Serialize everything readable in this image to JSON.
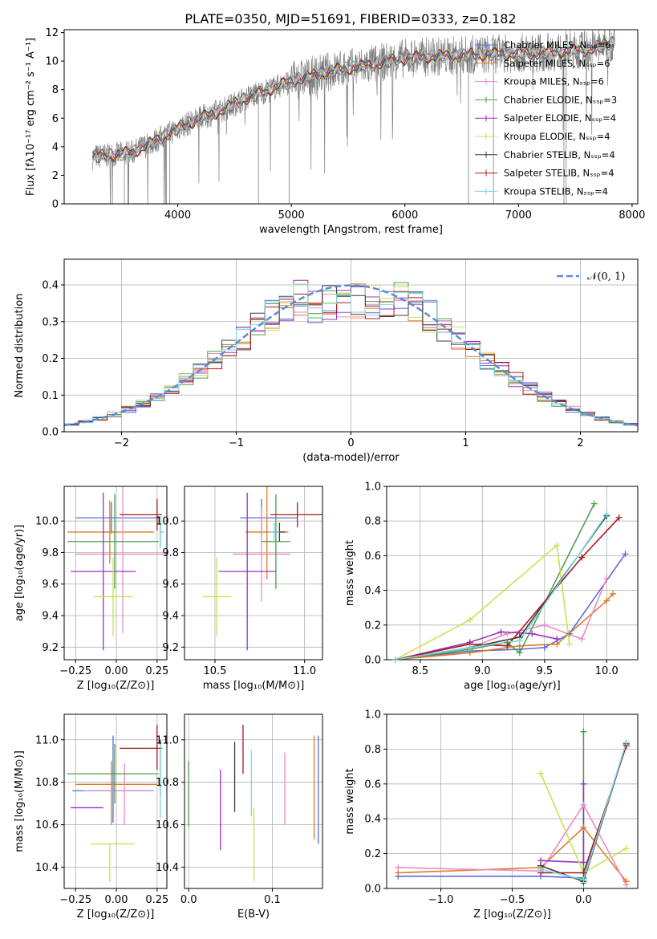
{
  "figure": {
    "title": "PLATE=0350, MJD=51691, FIBERID=0333, z=0.182"
  },
  "colors": {
    "series": [
      "#5a6cd8",
      "#e07b26",
      "#e88bc4",
      "#4c9f4c",
      "#9b30c4",
      "#c9e352",
      "#3c3c3c",
      "#a8191c",
      "#7ad8df"
    ],
    "data": "#808080",
    "gaussian": "#5b8bd8"
  },
  "chart_data": [
    {
      "id": "spectrum",
      "type": "line",
      "xlabel": "wavelength [Angstrom, rest frame]",
      "ylabel": "Flux [fλ10⁻¹⁷ erg cm⁻² s⁻¹ A⁻¹]",
      "xlim": [
        3000,
        8050
      ],
      "ylim": [
        0,
        12.2
      ],
      "xticks": [
        "4000",
        "5000",
        "6000",
        "7000",
        "8000"
      ],
      "yticks": [
        "0",
        "2",
        "4",
        "6",
        "8",
        "10",
        "12"
      ],
      "legend_position": "top-right",
      "series": [
        {
          "name": "Chabrier MILES, Nₛₛₚ=6"
        },
        {
          "name": "Salpeter MILES, Nₛₛₚ=6"
        },
        {
          "name": "Kroupa MILES, Nₛₛₚ=6"
        },
        {
          "name": "Chabrier ELODIE, Nₛₛₚ=3"
        },
        {
          "name": "Salpeter ELODIE, Nₛₛₚ=4"
        },
        {
          "name": "Kroupa ELODIE, Nₛₛₚ=4"
        },
        {
          "name": "Chabrier STELIB, Nₛₛₚ=4"
        },
        {
          "name": "Salpeter STELIB, Nₛₛₚ=4"
        },
        {
          "name": "Kroupa STELIB, Nₛₛₚ=4"
        }
      ],
      "continuum": {
        "x": [
          3250,
          3400,
          3600,
          3800,
          4000,
          4200,
          4400,
          4600,
          4800,
          5000,
          5200,
          5400,
          5600,
          5800,
          6000,
          6200,
          6500,
          6800,
          7200,
          7600,
          7850
        ],
        "y": [
          3.3,
          3.4,
          3.6,
          4.4,
          5.3,
          6.0,
          6.6,
          7.4,
          8.0,
          8.6,
          9.0,
          9.4,
          9.6,
          9.9,
          10.2,
          10.3,
          10.4,
          10.5,
          10.6,
          10.8,
          11.3
        ]
      }
    },
    {
      "id": "residuals",
      "type": "line",
      "xlabel": "(data-model)/error",
      "ylabel": "Normed distribution",
      "xlim": [
        -2.5,
        2.5
      ],
      "ylim": [
        0,
        0.47
      ],
      "xticks": [
        "−2",
        "−1",
        "0",
        "1",
        "2"
      ],
      "yticks": [
        "0.0",
        "0.1",
        "0.2",
        "0.3",
        "0.4"
      ],
      "legend": "𝒩(0, 1)",
      "legend_position": "top-right",
      "gaussian": {
        "mean": 0,
        "sigma": 1
      }
    },
    {
      "id": "age-vs-Z",
      "type": "scatter",
      "xlabel": "Z [log₁₀(Z/Z⊙)]",
      "ylabel": "age  [log₁₀(age/yr)]",
      "xlim": [
        -0.32,
        0.31
      ],
      "ylim": [
        9.12,
        10.22
      ],
      "xticks": [
        "−0.25",
        "0.00",
        "0.25"
      ],
      "yticks": [
        "9.2",
        "9.4",
        "9.6",
        "9.8",
        "10.0"
      ],
      "points": [
        {
          "x": -0.03,
          "xerr": [
            0.22,
            0.3
          ],
          "y": 10.02,
          "yerr": [
            0.1,
            0.1
          ]
        },
        {
          "x": -0.04,
          "xerr": [
            0.26,
            0.27
          ],
          "y": 9.93,
          "yerr": [
            0.2,
            0.2
          ]
        },
        {
          "x": 0.04,
          "xerr": [
            0.29,
            0.27
          ],
          "y": 9.79,
          "yerr": [
            0.5,
            0.5
          ]
        },
        {
          "x": -0.01,
          "xerr": [
            0.29,
            0.27
          ],
          "y": 9.87,
          "yerr": [
            0.3,
            0.3
          ]
        },
        {
          "x": -0.08,
          "xerr": [
            0.2,
            0.2
          ],
          "y": 9.68,
          "yerr": [
            0.5,
            0.5
          ]
        },
        {
          "x": -0.02,
          "xerr": [
            0.12,
            0.12
          ],
          "y": 9.52,
          "yerr": [
            0.25,
            0.25
          ]
        },
        {
          "x": 0.27,
          "xerr": [
            0.0,
            0.02
          ],
          "y": 9.93,
          "yerr": [
            0.1,
            0.1
          ]
        },
        {
          "x": 0.25,
          "xerr": [
            0.23,
            0.03
          ],
          "y": 10.04,
          "yerr": [
            0.1,
            0.1
          ]
        },
        {
          "x": 0.27,
          "xerr": [
            0.0,
            0.02
          ],
          "y": 9.93,
          "yerr": [
            0.1,
            0.1
          ]
        }
      ]
    },
    {
      "id": "age-vs-mass",
      "type": "scatter",
      "xlabel": "mass [log₁₀(M/M⊙)]",
      "ylabel": "",
      "xlim": [
        10.33,
        11.1
      ],
      "ylim": [
        9.12,
        10.22
      ],
      "xticks": [
        "10.5",
        "11.0"
      ],
      "yticks": [
        "9.2",
        "9.4",
        "9.6",
        "9.8",
        "10.0"
      ],
      "points": [
        {
          "x": 10.76,
          "xerr": [
            0.12,
            0.2
          ],
          "y": 10.02,
          "yerr": [
            0.12,
            0.12
          ]
        },
        {
          "x": 10.79,
          "xerr": [
            0.12,
            0.12
          ],
          "y": 9.93,
          "yerr": [
            0.3,
            0.3
          ]
        },
        {
          "x": 10.76,
          "xerr": [
            0.16,
            0.16
          ],
          "y": 9.79,
          "yerr": [
            0.3,
            0.3
          ]
        },
        {
          "x": 10.84,
          "xerr": [
            0.08,
            0.08
          ],
          "y": 9.87,
          "yerr": [
            0.3,
            0.3
          ]
        },
        {
          "x": 10.68,
          "xerr": [
            0.16,
            0.16
          ],
          "y": 9.68,
          "yerr": [
            0.5,
            0.5
          ]
        },
        {
          "x": 10.51,
          "xerr": [
            0.08,
            0.08
          ],
          "y": 9.52,
          "yerr": [
            0.25,
            0.25
          ]
        },
        {
          "x": 10.86,
          "xerr": [
            0.03,
            0.03
          ],
          "y": 9.93,
          "yerr": [
            0.06,
            0.06
          ]
        },
        {
          "x": 10.96,
          "xerr": [
            0.15,
            0.15
          ],
          "y": 10.04,
          "yerr": [
            0.08,
            0.08
          ]
        },
        {
          "x": 10.83,
          "xerr": [
            0.03,
            0.03
          ],
          "y": 9.93,
          "yerr": [
            0.06,
            0.06
          ]
        }
      ]
    },
    {
      "id": "weight-vs-age",
      "type": "line",
      "xlabel": "age  [log₁₀(age/yr)]",
      "ylabel": "mass weight",
      "xlim": [
        8.23,
        10.25
      ],
      "ylim": [
        0,
        1.0
      ],
      "xticks": [
        "8.5",
        "9.0",
        "9.5",
        "10.0"
      ],
      "yticks": [
        "0.0",
        "0.2",
        "0.4",
        "0.6",
        "0.8",
        "1.0"
      ],
      "series": [
        {
          "x": [
            8.3,
            8.9,
            9.3,
            9.5,
            9.7,
            10.15
          ],
          "y": [
            0.0,
            0.05,
            0.06,
            0.07,
            0.15,
            0.61
          ]
        },
        {
          "x": [
            8.3,
            8.9,
            9.3,
            9.6,
            10.0,
            10.05
          ],
          "y": [
            0.0,
            0.04,
            0.08,
            0.09,
            0.34,
            0.38
          ]
        },
        {
          "x": [
            8.3,
            8.9,
            9.2,
            9.5,
            9.8,
            10.0
          ],
          "y": [
            0.0,
            0.07,
            0.15,
            0.2,
            0.12,
            0.47
          ]
        },
        {
          "x": [
            8.3,
            8.9,
            9.2,
            9.3,
            9.9
          ],
          "y": [
            0.0,
            0.06,
            0.1,
            0.04,
            0.9
          ]
        },
        {
          "x": [
            8.3,
            8.9,
            9.15,
            9.4,
            9.6
          ],
          "y": [
            0.0,
            0.1,
            0.16,
            0.15,
            0.12
          ]
        },
        {
          "x": [
            8.3,
            8.9,
            9.6,
            9.7
          ],
          "y": [
            0.0,
            0.23,
            0.66,
            0.09
          ]
        },
        {
          "x": [
            8.3,
            8.9,
            9.3,
            10.0
          ],
          "y": [
            0.0,
            0.07,
            0.13,
            0.83
          ]
        },
        {
          "x": [
            8.3,
            8.9,
            9.2,
            9.8,
            10.1
          ],
          "y": [
            0.0,
            0.09,
            0.08,
            0.59,
            0.82
          ]
        },
        {
          "x": [
            8.3,
            8.9,
            9.3,
            10.0
          ],
          "y": [
            0.0,
            0.07,
            0.11,
            0.84
          ]
        }
      ]
    },
    {
      "id": "mass-vs-Z",
      "type": "scatter",
      "xlabel": "Z [log₁₀(Z/Z⊙)]",
      "ylabel": "mass [log₁₀(M/M⊙)]",
      "xlim": [
        -0.32,
        0.31
      ],
      "ylim": [
        10.3,
        11.12
      ],
      "xticks": [
        "−0.25",
        "0.00",
        "0.25"
      ],
      "yticks": [
        "10.4",
        "10.6",
        "10.8",
        "11.0"
      ],
      "points": [
        {
          "x": -0.02,
          "xerr": [
            0.25,
            0.25
          ],
          "y": 10.76,
          "yerr": [
            0.15,
            0.26
          ]
        },
        {
          "x": -0.03,
          "xerr": [
            0.22,
            0.28
          ],
          "y": 10.79,
          "yerr": [
            0.19,
            0.11
          ]
        },
        {
          "x": 0.05,
          "xerr": [
            0.25,
            0.18
          ],
          "y": 10.76,
          "yerr": [
            0.16,
            0.13
          ]
        },
        {
          "x": -0.01,
          "xerr": [
            0.29,
            0.27
          ],
          "y": 10.84,
          "yerr": [
            0.14,
            0.14
          ]
        },
        {
          "x": -0.08,
          "xerr": [
            0.2,
            0.0
          ],
          "y": 10.68,
          "yerr": [
            0.0,
            0.0
          ]
        },
        {
          "x": -0.04,
          "xerr": [
            0.12,
            0.15
          ],
          "y": 10.51,
          "yerr": [
            0.18,
            0.0
          ]
        },
        {
          "x": 0.27,
          "xerr": [
            0.0,
            0.0
          ],
          "y": 10.86,
          "yerr": [
            0.12,
            0.14
          ]
        },
        {
          "x": 0.25,
          "xerr": [
            0.23,
            0.03
          ],
          "y": 10.96,
          "yerr": [
            0.1,
            0.11
          ]
        },
        {
          "x": 0.27,
          "xerr": [
            0.0,
            0.0
          ],
          "y": 10.83,
          "yerr": [
            0.2,
            0.15
          ]
        }
      ]
    },
    {
      "id": "mass-vs-ebv",
      "type": "scatter",
      "xlabel": "E(B-V)",
      "ylabel": "",
      "xlim": [
        -0.005,
        0.16
      ],
      "ylim": [
        10.3,
        11.12
      ],
      "xticks": [
        "0.0",
        "0.1"
      ],
      "yticks": [
        "10.4",
        "10.6",
        "10.8",
        "11.0"
      ],
      "points": [
        {
          "x": 0.155,
          "y": 10.76,
          "yerr": [
            0.25,
            0.26
          ]
        },
        {
          "x": 0.15,
          "y": 10.79,
          "yerr": [
            0.26,
            0.23
          ]
        },
        {
          "x": 0.115,
          "y": 10.76,
          "yerr": [
            0.16,
            0.18
          ]
        },
        {
          "x": 0.0,
          "y": 10.75,
          "yerr": [
            0.16,
            0.15
          ]
        },
        {
          "x": 0.038,
          "y": 10.67,
          "yerr": [
            0.19,
            0.19
          ]
        },
        {
          "x": 0.078,
          "y": 10.51,
          "yerr": [
            0.18,
            0.17
          ]
        },
        {
          "x": 0.055,
          "y": 10.83,
          "yerr": [
            0.17,
            0.16
          ]
        },
        {
          "x": 0.065,
          "y": 10.96,
          "yerr": [
            0.12,
            0.11
          ]
        },
        {
          "x": 0.075,
          "y": 10.83,
          "yerr": [
            0.19,
            0.12
          ]
        }
      ]
    },
    {
      "id": "weight-vs-Z",
      "type": "line",
      "xlabel": "Z [log₁₀(Z/Z⊙)]",
      "ylabel": "mass weight",
      "xlim": [
        -1.38,
        0.38
      ],
      "ylim": [
        0,
        1.0
      ],
      "xticks": [
        "−1.0",
        "−0.5",
        "0.0"
      ],
      "yticks": [
        "0.0",
        "0.2",
        "0.4",
        "0.6",
        "0.8",
        "1.0"
      ],
      "series": [
        {
          "x": [
            -1.3,
            -0.3,
            0.0,
            0.3
          ],
          "y": [
            0.07,
            0.07,
            0.06,
            0.83
          ]
        },
        {
          "x": [
            -1.3,
            -0.3,
            0.0,
            0.3
          ],
          "y": [
            0.09,
            0.12,
            0.35,
            0.04
          ]
        },
        {
          "x": [
            -1.3,
            -0.3,
            0.0,
            0.3
          ],
          "y": [
            0.12,
            0.1,
            0.48,
            0.02
          ]
        },
        {
          "x": [
            0.0,
            0.0,
            0.0
          ],
          "y": [
            0.03,
            0.9,
            0.06
          ]
        },
        {
          "x": [
            -0.3,
            0.0,
            0.0
          ],
          "y": [
            0.16,
            0.15,
            0.6
          ]
        },
        {
          "x": [
            -0.3,
            0.0,
            0.3
          ],
          "y": [
            0.66,
            0.09,
            0.23
          ]
        },
        {
          "x": [
            -0.3,
            0.0,
            0.3
          ],
          "y": [
            0.13,
            0.04,
            0.83
          ]
        },
        {
          "x": [
            -0.3,
            0.0,
            0.3
          ],
          "y": [
            0.09,
            0.09,
            0.82
          ]
        },
        {
          "x": [
            -0.3,
            0.0,
            0.3
          ],
          "y": [
            0.11,
            0.05,
            0.84
          ]
        }
      ]
    }
  ]
}
